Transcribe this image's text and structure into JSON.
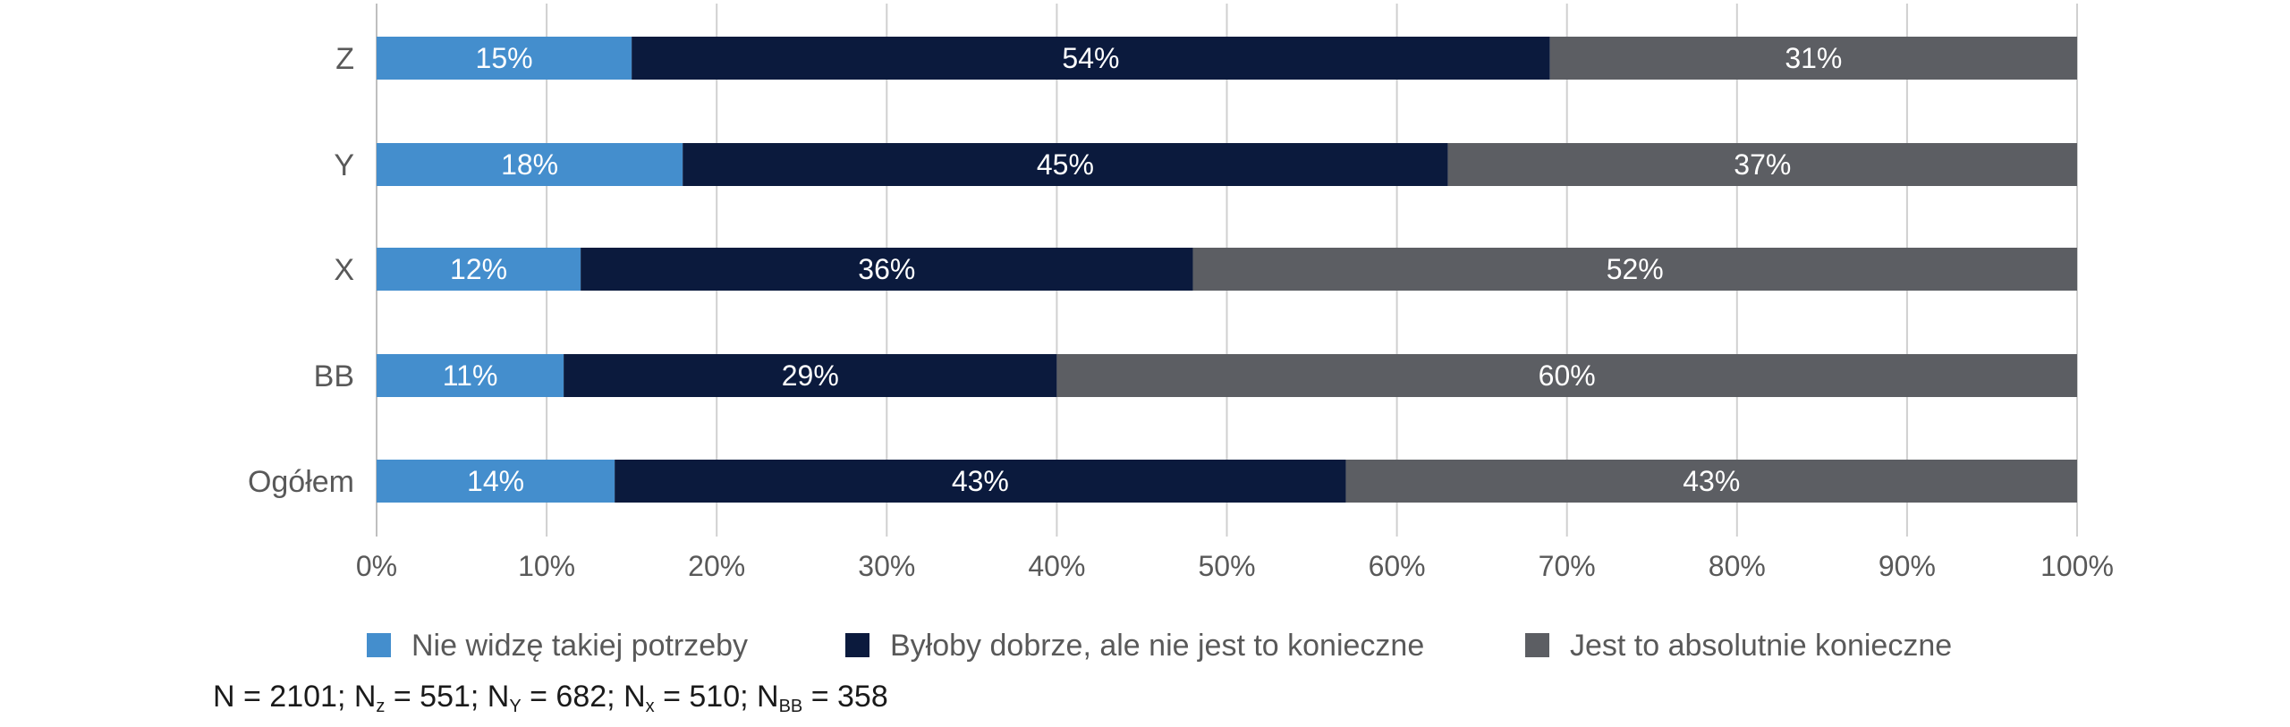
{
  "chart_data": {
    "type": "bar",
    "orientation": "horizontal",
    "stacked": true,
    "categories": [
      "Z",
      "Y",
      "X",
      "BB",
      "Ogółem"
    ],
    "series": [
      {
        "name": "Nie widzę takiej potrzeby",
        "color": "#448ecd",
        "values": [
          15,
          18,
          12,
          11,
          14
        ],
        "labels": [
          "15%",
          "18%",
          "12%",
          "11%",
          "14%"
        ]
      },
      {
        "name": "Byłoby dobrze, ale nie jest to konieczne",
        "color": "#0b1a3d",
        "values": [
          54,
          45,
          36,
          29,
          43
        ],
        "labels": [
          "54%",
          "45%",
          "36%",
          "29%",
          "43%"
        ]
      },
      {
        "name": "Jest to absolutnie konieczne",
        "color": "#5c5e63",
        "values": [
          31,
          37,
          52,
          60,
          43
        ],
        "labels": [
          "31%",
          "37%",
          "52%",
          "60%",
          "43%"
        ]
      }
    ],
    "xlim": [
      0,
      100
    ],
    "xticks": [
      "0%",
      "10%",
      "20%",
      "30%",
      "40%",
      "50%",
      "60%",
      "70%",
      "80%",
      "90%",
      "100%"
    ],
    "grid": true,
    "legend_position": "bottom",
    "title": "",
    "xlabel": "",
    "ylabel": ""
  },
  "note": {
    "n_total": "N = 2101;",
    "n_z_prefix": "N",
    "n_z_sub": "z",
    "n_z_value": " = 551;",
    "n_y_prefix": "N",
    "n_y_sub": "Y",
    "n_y_value": " = 682;",
    "n_x_prefix": "N",
    "n_x_sub": "x",
    "n_x_value": " = 510;",
    "n_bb_prefix": "N",
    "n_bb_sub": "BB",
    "n_bb_value": " = 358"
  }
}
